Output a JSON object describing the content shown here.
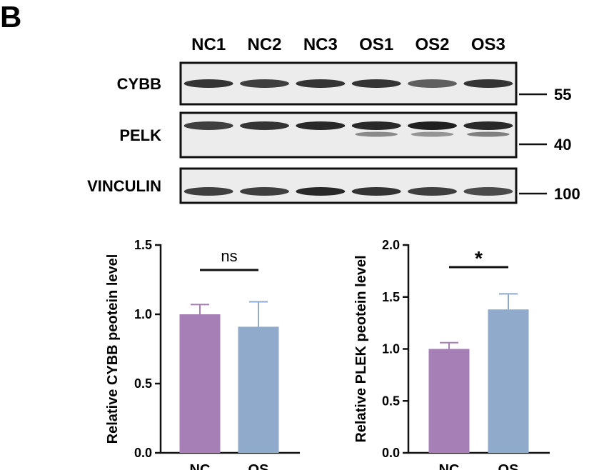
{
  "panel_label": "B",
  "blot": {
    "lanes": [
      "NC1",
      "NC2",
      "NC3",
      "OS1",
      "OS2",
      "OS3"
    ],
    "rows": [
      {
        "protein": "CYBB",
        "marker": "55",
        "band_intensity": [
          0.85,
          0.8,
          0.85,
          0.85,
          0.65,
          0.85
        ],
        "secondary_band": [
          0,
          0,
          0,
          0,
          0,
          0
        ]
      },
      {
        "protein": "PELK",
        "marker": "40",
        "band_intensity": [
          0.8,
          0.85,
          0.9,
          0.9,
          0.95,
          0.9
        ],
        "secondary_band": [
          0,
          0,
          0,
          0.45,
          0.4,
          0.5
        ]
      },
      {
        "protein": "VINCULIN",
        "marker": "100",
        "band_intensity": [
          0.8,
          0.8,
          0.9,
          0.85,
          0.8,
          0.75
        ],
        "secondary_band": [
          0,
          0,
          0,
          0,
          0,
          0
        ]
      }
    ]
  },
  "colors": {
    "nc": "#a67fb6",
    "os": "#8faacb",
    "ink": "#111111",
    "blot_bg": "#ececec",
    "band": "#141414"
  },
  "chart_data": [
    {
      "type": "bar",
      "categories": [
        "NC",
        "OS"
      ],
      "values": [
        1.0,
        0.91
      ],
      "error": [
        0.07,
        0.18
      ],
      "ylabel": "Relative CYBB peotein level",
      "ylim": [
        0,
        1.5
      ],
      "yticks": [
        "0.0",
        "0.5",
        "1.0",
        "1.5"
      ],
      "ytick_values": [
        0,
        0.5,
        1.0,
        1.5
      ],
      "significance": "ns",
      "grid": false
    },
    {
      "type": "bar",
      "categories": [
        "NC",
        "OS"
      ],
      "values": [
        1.0,
        1.38
      ],
      "error": [
        0.06,
        0.15
      ],
      "ylabel": "Relative PLEK peotein level",
      "ylim": [
        0,
        2.0
      ],
      "yticks": [
        "0.0",
        "0.5",
        "1.0",
        "1.5",
        "2.0"
      ],
      "ytick_values": [
        0,
        0.5,
        1.0,
        1.5,
        2.0
      ],
      "significance": "*",
      "grid": false
    }
  ]
}
